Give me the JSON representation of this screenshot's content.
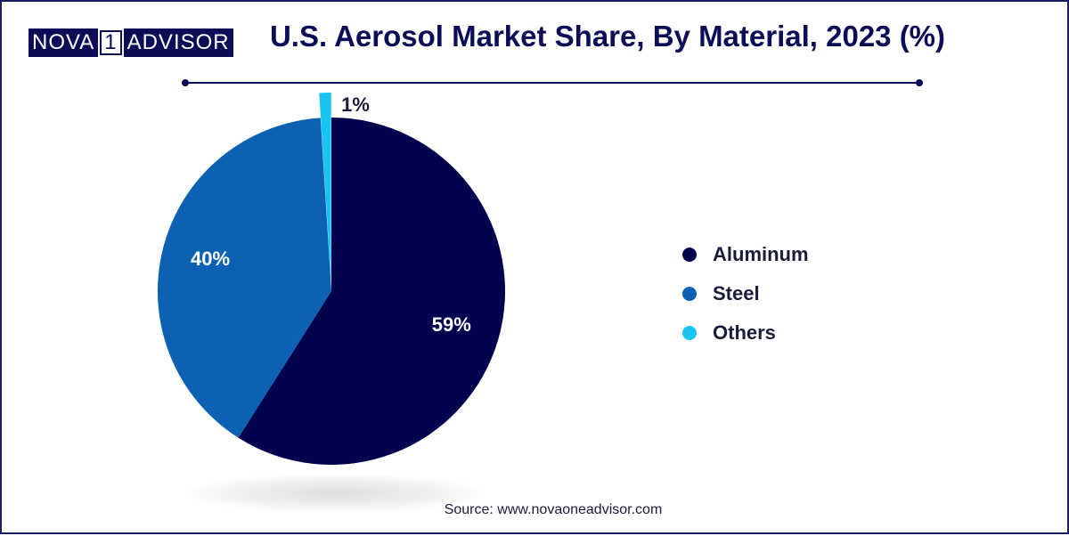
{
  "logo": {
    "left": "NOVA",
    "mid": "1",
    "right": "ADVISOR"
  },
  "chart_data": {
    "type": "pie",
    "title": "U.S. Aerosol Market Share, By Material, 2023 (%)",
    "categories": [
      "Aluminum",
      "Steel",
      "Others"
    ],
    "values": [
      59,
      40,
      1
    ],
    "value_labels": [
      "59%",
      "40%",
      "1%"
    ],
    "colors": [
      "#03024f",
      "#0c61b3",
      "#19c4f2"
    ],
    "legend_position": "right"
  },
  "source": "Source: www.novaoneadvisor.com"
}
